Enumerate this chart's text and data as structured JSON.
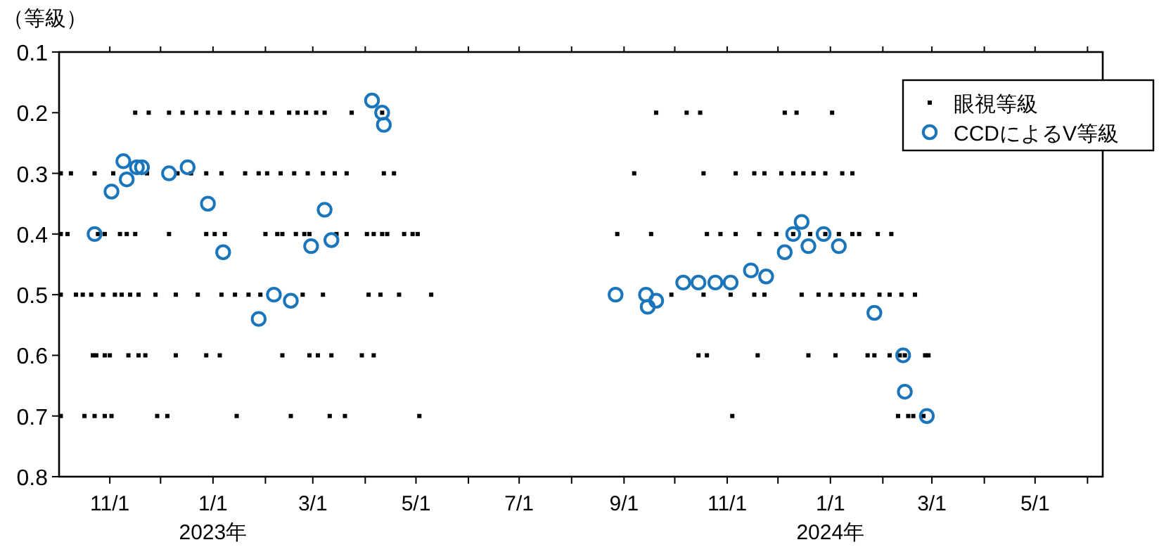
{
  "chart_data": {
    "type": "scatter",
    "ylabel": "（等級）",
    "xlim": [
      "2022-10-02",
      "2024-06-10"
    ],
    "ylim": [
      0.8,
      0.1
    ],
    "xticks": [
      {
        "value": "2022-11-01",
        "label": "11/1"
      },
      {
        "value": "2022-12-01",
        "label": null
      },
      {
        "value": "2023-01-01",
        "label": "1/1\n2023年"
      },
      {
        "value": "2023-02-01",
        "label": null
      },
      {
        "value": "2023-03-01",
        "label": "3/1"
      },
      {
        "value": "2023-04-01",
        "label": null
      },
      {
        "value": "2023-05-01",
        "label": "5/1"
      },
      {
        "value": "2023-06-01",
        "label": null
      },
      {
        "value": "2023-07-01",
        "label": "7/1"
      },
      {
        "value": "2023-08-01",
        "label": null
      },
      {
        "value": "2023-09-01",
        "label": "9/1"
      },
      {
        "value": "2023-10-01",
        "label": null
      },
      {
        "value": "2023-11-01",
        "label": "11/1"
      },
      {
        "value": "2023-12-01",
        "label": null
      },
      {
        "value": "2024-01-01",
        "label": "1/1\n2024年"
      },
      {
        "value": "2024-02-01",
        "label": null
      },
      {
        "value": "2024-03-01",
        "label": "3/1"
      },
      {
        "value": "2024-04-01",
        "label": null
      },
      {
        "value": "2024-05-01",
        "label": "5/1"
      },
      {
        "value": "2024-06-01",
        "label": null
      }
    ],
    "yticks": [
      0.1,
      0.2,
      0.3,
      0.4,
      0.5,
      0.6,
      0.7,
      0.8
    ],
    "grid": false,
    "legend": "top right",
    "series": [
      {
        "name": "眼視等級",
        "marker": "square",
        "color": "#000000",
        "x": [
          "2022-11-16",
          "2022-11-24",
          "2022-12-06",
          "2022-12-14",
          "2022-12-22",
          "2022-12-29",
          "2023-01-05",
          "2023-01-13",
          "2023-01-21",
          "2023-01-29",
          "2023-02-05",
          "2023-02-15",
          "2023-02-20",
          "2023-02-25",
          "2023-03-03",
          "2023-03-08",
          "2023-03-24",
          "2023-04-11",
          "2023-09-20",
          "2023-10-08",
          "2023-10-16",
          "2023-12-05",
          "2023-12-12",
          "2024-01-02",
          "2022-10-03",
          "2022-10-09",
          "2022-10-23",
          "2022-11-03",
          "2022-11-23",
          "2022-12-11",
          "2022-12-19",
          "2022-12-28",
          "2023-01-06",
          "2023-01-20",
          "2023-01-28",
          "2023-02-02",
          "2023-02-10",
          "2023-02-18",
          "2023-02-26",
          "2023-03-07",
          "2023-03-14",
          "2023-03-21",
          "2023-04-12",
          "2023-04-18",
          "2023-09-07",
          "2023-10-18",
          "2023-11-06",
          "2023-11-17",
          "2023-11-23",
          "2023-12-03",
          "2023-12-10",
          "2023-12-16",
          "2023-12-22",
          "2023-12-29",
          "2024-01-08",
          "2024-01-14",
          "2022-10-03",
          "2022-10-07",
          "2022-10-25",
          "2022-10-29",
          "2022-11-07",
          "2022-11-11",
          "2022-11-16",
          "2022-12-06",
          "2022-12-28",
          "2023-01-02",
          "2023-01-08",
          "2023-02-01",
          "2023-02-08",
          "2023-02-11",
          "2023-02-19",
          "2023-02-24",
          "2023-02-27",
          "2023-03-15",
          "2023-03-21",
          "2023-04-02",
          "2023-04-06",
          "2023-04-11",
          "2023-04-14",
          "2023-04-24",
          "2023-04-29",
          "2023-05-02",
          "2023-08-28",
          "2023-09-17",
          "2023-10-20",
          "2023-10-28",
          "2023-11-06",
          "2023-11-20",
          "2023-11-30",
          "2023-12-10",
          "2023-12-20",
          "2023-12-29",
          "2024-01-06",
          "2024-01-14",
          "2024-01-18",
          "2024-01-29",
          "2024-02-06",
          "2022-10-03",
          "2022-10-12",
          "2022-10-16",
          "2022-10-21",
          "2022-10-28",
          "2022-11-04",
          "2022-11-08",
          "2022-11-13",
          "2022-11-18",
          "2022-11-28",
          "2022-12-10",
          "2022-12-23",
          "2023-01-06",
          "2023-01-14",
          "2023-01-22",
          "2023-01-29",
          "2023-02-23",
          "2023-03-07",
          "2023-04-03",
          "2023-04-10",
          "2023-04-21",
          "2023-05-10",
          "2023-09-29",
          "2023-10-18",
          "2023-11-03",
          "2023-11-17",
          "2023-11-23",
          "2023-12-15",
          "2023-12-25",
          "2024-01-01",
          "2024-01-08",
          "2024-01-15",
          "2024-01-20",
          "2024-01-30",
          "2024-02-05",
          "2024-02-12",
          "2024-02-20",
          "2022-10-22",
          "2022-10-24",
          "2022-10-29",
          "2022-11-01",
          "2022-11-12",
          "2022-11-18",
          "2022-11-22",
          "2022-12-10",
          "2022-12-28",
          "2023-01-05",
          "2023-02-11",
          "2023-02-27",
          "2023-03-04",
          "2023-03-12",
          "2023-03-30",
          "2023-04-06",
          "2023-10-15",
          "2023-10-20",
          "2023-11-19",
          "2023-12-19",
          "2024-01-04",
          "2024-01-23",
          "2024-01-27",
          "2024-02-05",
          "2024-02-11",
          "2024-02-14",
          "2024-02-26",
          "2024-02-28",
          "2022-10-03",
          "2022-10-17",
          "2022-10-23",
          "2022-10-29",
          "2022-11-02",
          "2022-11-29",
          "2022-12-05",
          "2023-01-15",
          "2023-02-16",
          "2023-03-11",
          "2023-03-20",
          "2023-05-03",
          "2023-11-04",
          "2024-02-10",
          "2024-02-16",
          "2024-02-19",
          "2024-02-25"
        ],
        "values": [
          0.2,
          0.2,
          0.2,
          0.2,
          0.2,
          0.2,
          0.2,
          0.2,
          0.2,
          0.2,
          0.2,
          0.2,
          0.2,
          0.2,
          0.2,
          0.2,
          0.2,
          0.2,
          0.2,
          0.2,
          0.2,
          0.2,
          0.2,
          0.2,
          0.3,
          0.3,
          0.3,
          0.3,
          0.3,
          0.3,
          0.3,
          0.3,
          0.3,
          0.3,
          0.3,
          0.3,
          0.3,
          0.3,
          0.3,
          0.3,
          0.3,
          0.3,
          0.3,
          0.3,
          0.3,
          0.3,
          0.3,
          0.3,
          0.3,
          0.3,
          0.3,
          0.3,
          0.3,
          0.3,
          0.3,
          0.3,
          0.4,
          0.4,
          0.4,
          0.4,
          0.4,
          0.4,
          0.4,
          0.4,
          0.4,
          0.4,
          0.4,
          0.4,
          0.4,
          0.4,
          0.4,
          0.4,
          0.4,
          0.4,
          0.4,
          0.4,
          0.4,
          0.4,
          0.4,
          0.4,
          0.4,
          0.4,
          0.4,
          0.4,
          0.4,
          0.4,
          0.4,
          0.4,
          0.4,
          0.4,
          0.4,
          0.4,
          0.4,
          0.4,
          0.4,
          0.4,
          0.4,
          0.5,
          0.5,
          0.5,
          0.5,
          0.5,
          0.5,
          0.5,
          0.5,
          0.5,
          0.5,
          0.5,
          0.5,
          0.5,
          0.5,
          0.5,
          0.5,
          0.5,
          0.5,
          0.5,
          0.5,
          0.5,
          0.5,
          0.5,
          0.5,
          0.5,
          0.5,
          0.5,
          0.5,
          0.5,
          0.5,
          0.5,
          0.5,
          0.5,
          0.5,
          0.5,
          0.5,
          0.5,
          0.6,
          0.6,
          0.6,
          0.6,
          0.6,
          0.6,
          0.6,
          0.6,
          0.6,
          0.6,
          0.6,
          0.6,
          0.6,
          0.6,
          0.6,
          0.6,
          0.6,
          0.6,
          0.6,
          0.6,
          0.6,
          0.6,
          0.6,
          0.6,
          0.6,
          0.6,
          0.6,
          0.6,
          0.7,
          0.7,
          0.7,
          0.7,
          0.7,
          0.7,
          0.7,
          0.7,
          0.7,
          0.7,
          0.7,
          0.7,
          0.7,
          0.7,
          0.7,
          0.7,
          0.7
        ]
      },
      {
        "name": "CCDによるV等級",
        "marker": "circle",
        "color": "#1a75bb",
        "x": [
          "2022-10-23",
          "2022-11-02",
          "2022-11-09",
          "2022-11-11",
          "2022-11-17",
          "2022-11-20",
          "2022-12-06",
          "2022-12-17",
          "2022-12-29",
          "2023-01-07",
          "2023-01-28",
          "2023-02-06",
          "2023-02-16",
          "2023-02-28",
          "2023-03-08",
          "2023-03-12",
          "2023-04-05",
          "2023-04-11",
          "2023-04-12",
          "2023-08-27",
          "2023-09-14",
          "2023-09-15",
          "2023-09-20",
          "2023-10-06",
          "2023-10-15",
          "2023-10-25",
          "2023-11-03",
          "2023-11-15",
          "2023-11-24",
          "2023-12-05",
          "2023-12-10",
          "2023-12-15",
          "2023-12-19",
          "2023-12-28",
          "2024-01-06",
          "2024-01-27",
          "2024-02-13",
          "2024-02-14",
          "2024-02-27"
        ],
        "values": [
          0.4,
          0.33,
          0.28,
          0.31,
          0.29,
          0.29,
          0.3,
          0.29,
          0.35,
          0.43,
          0.54,
          0.5,
          0.51,
          0.42,
          0.36,
          0.41,
          0.18,
          0.2,
          0.22,
          0.5,
          0.5,
          0.52,
          0.51,
          0.48,
          0.48,
          0.48,
          0.48,
          0.46,
          0.47,
          0.43,
          0.4,
          0.38,
          0.42,
          0.4,
          0.42,
          0.53,
          0.6,
          0.66,
          0.7
        ]
      }
    ]
  }
}
